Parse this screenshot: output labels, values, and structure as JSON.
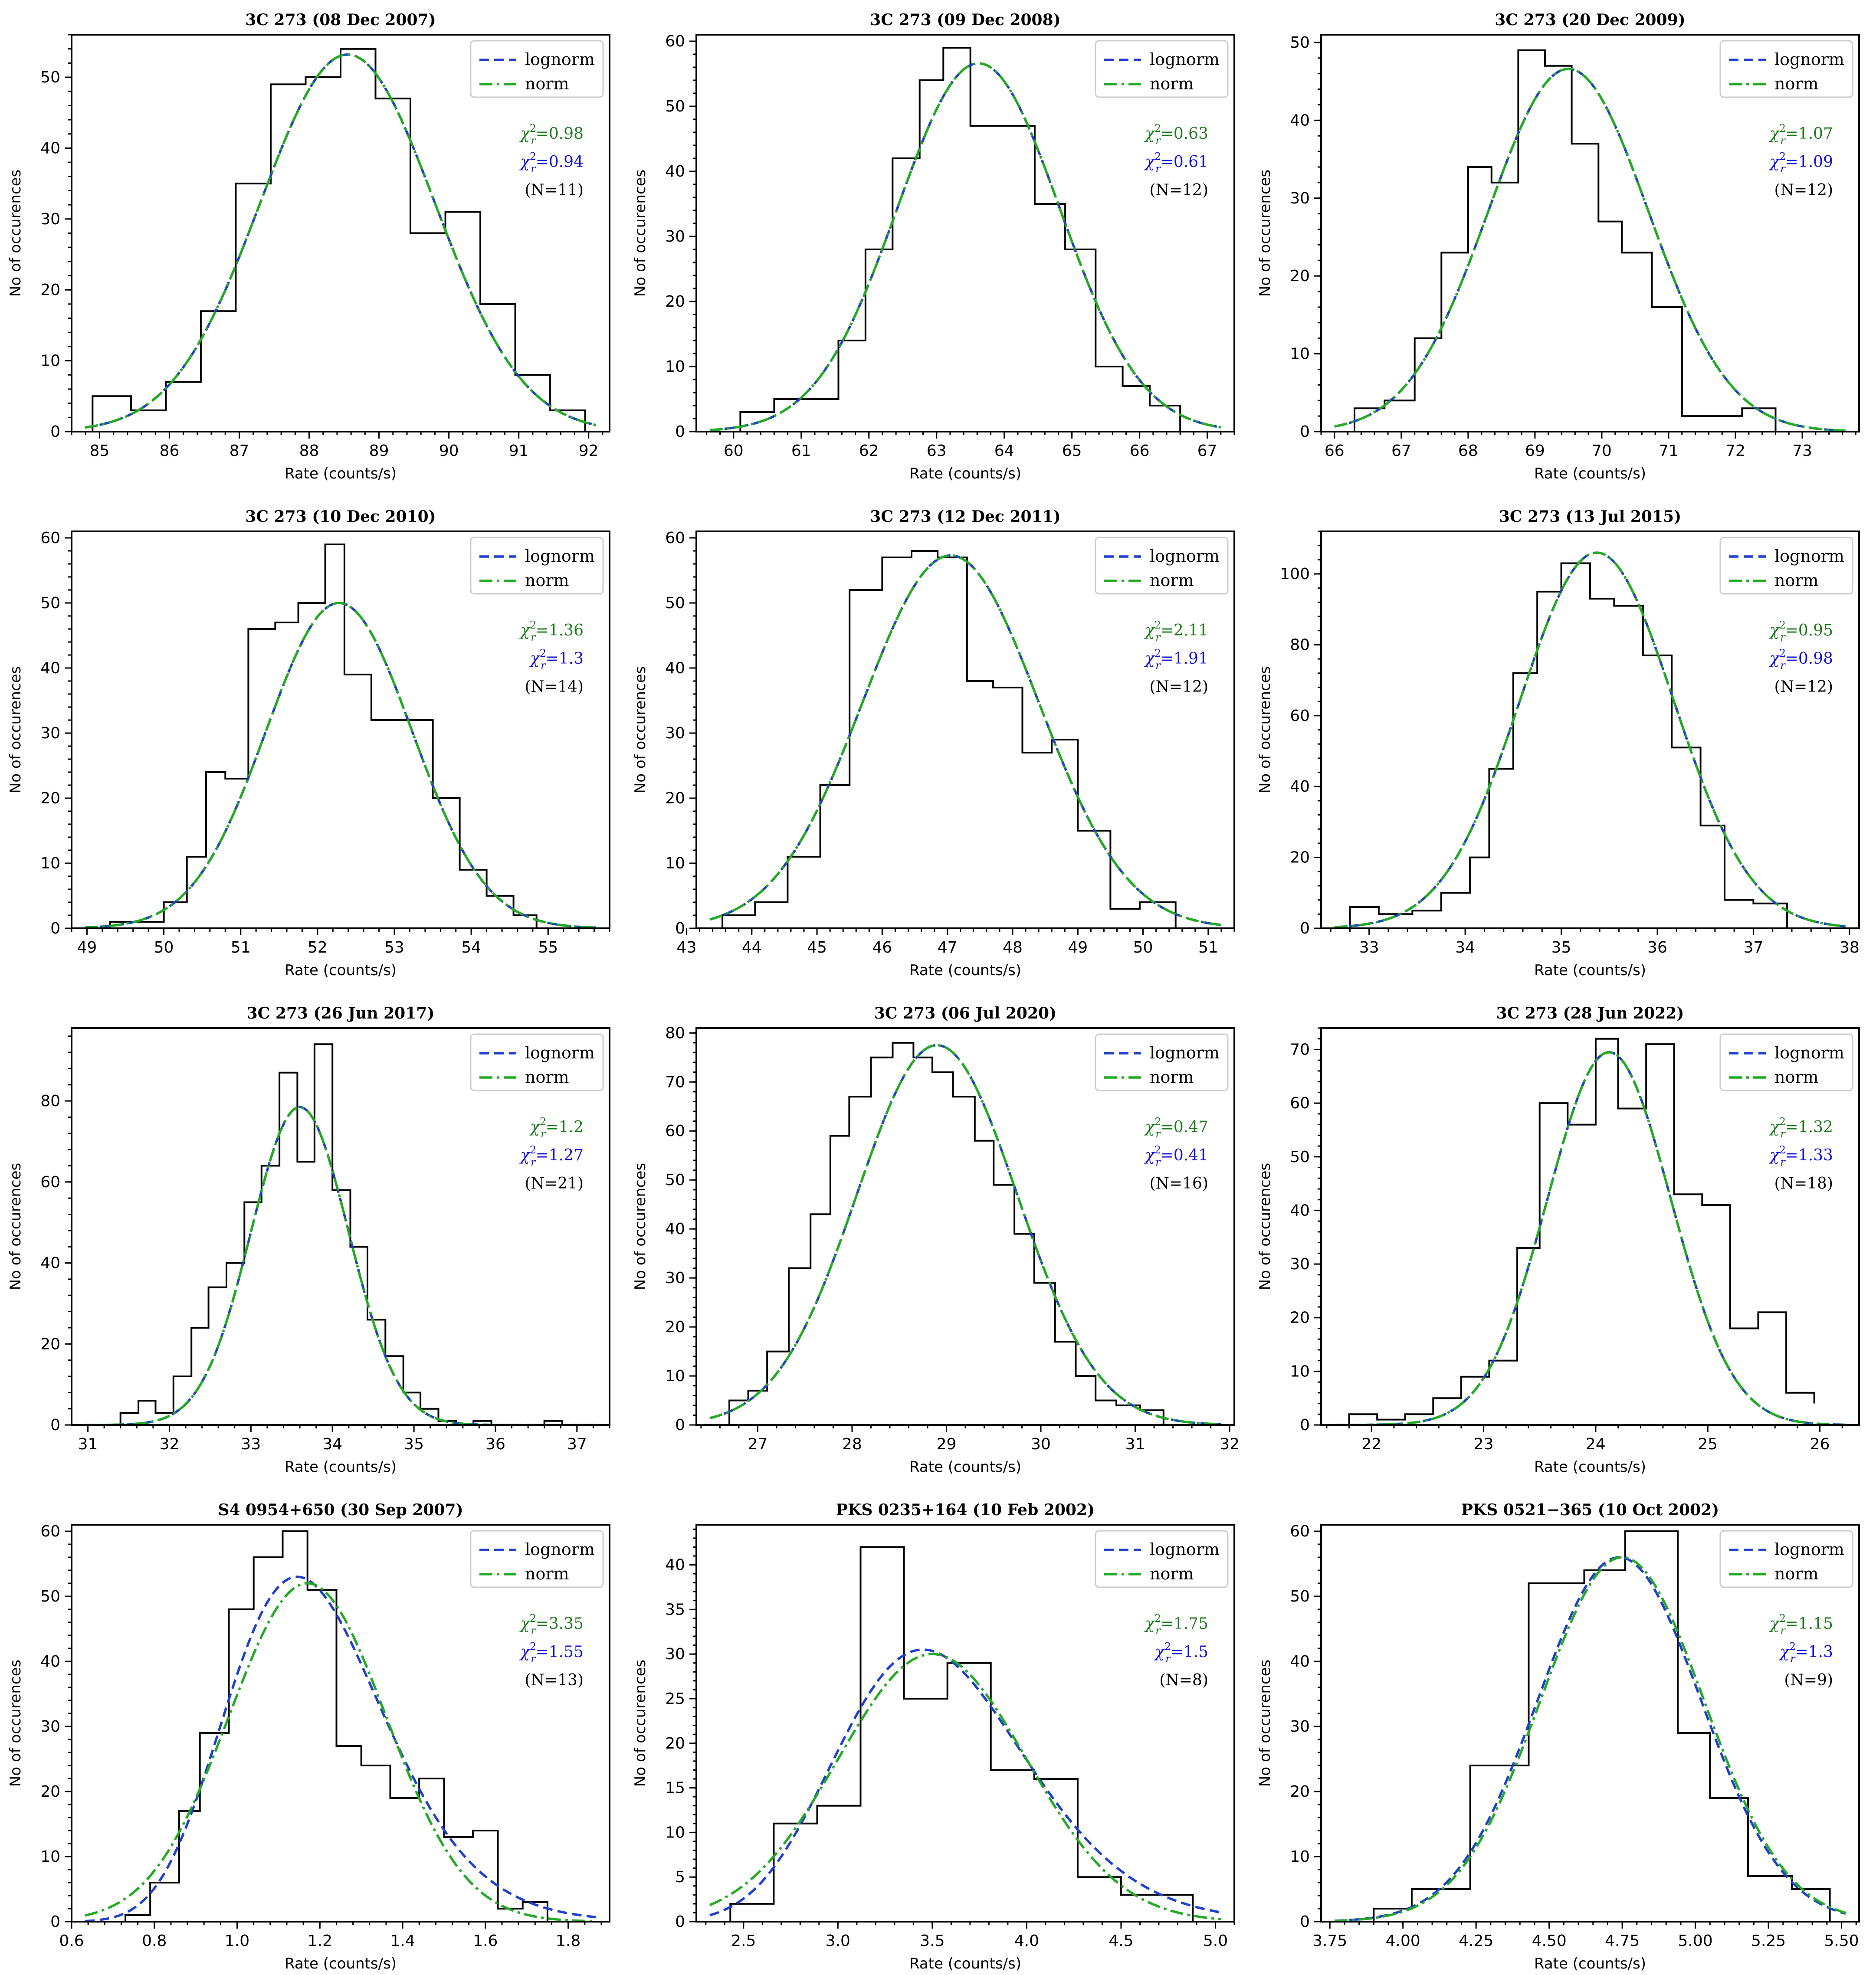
{
  "figure": {
    "ylabel": "No of occurences",
    "xlabel": "Rate (counts/s)",
    "legend": {
      "lognorm": "lognorm",
      "norm": "norm"
    },
    "colors": {
      "lognorm": "#1f3fcf",
      "norm": "#22aa22",
      "hist": "#000000",
      "chi_norm": "#1a7a1a",
      "chi_lognorm": "#1010dd"
    }
  },
  "chart_data": [
    {
      "type": "bar",
      "title": "3C 273 (08 Dec 2007)",
      "xlabel": "Rate (counts/s)",
      "ylabel": "No of occurences",
      "xlim": [
        84.6,
        92.3
      ],
      "ylim": [
        0,
        56
      ],
      "xticks": [
        85,
        86,
        87,
        88,
        89,
        90,
        91,
        92
      ],
      "yticks": [
        0,
        10,
        20,
        30,
        40,
        50
      ],
      "bin_edges": [
        84.9,
        85.45,
        85.95,
        86.45,
        86.95,
        87.45,
        87.95,
        88.45,
        88.95,
        89.45,
        89.95,
        90.45,
        90.95,
        91.45,
        91.95
      ],
      "counts": [
        5,
        3,
        7,
        17,
        35,
        49,
        50,
        54,
        47,
        28,
        31,
        18,
        8,
        3
      ],
      "lognorm": {
        "peak": 53.2,
        "mean": 88.55,
        "sigma": 1.25
      },
      "norm": {
        "peak": 53.2,
        "mean": 88.55,
        "sigma": 1.25
      },
      "chi2_norm": "0.98",
      "chi2_lognorm": "0.94",
      "N": "(N=11)"
    },
    {
      "type": "bar",
      "title": "3C 273 (09 Dec 2008)",
      "xlabel": "Rate (counts/s)",
      "ylabel": "No of occurences",
      "xlim": [
        59.45,
        67.4
      ],
      "ylim": [
        0,
        61
      ],
      "xticks": [
        60,
        61,
        62,
        63,
        64,
        65,
        66,
        67
      ],
      "yticks": [
        0,
        10,
        20,
        30,
        40,
        50,
        60
      ],
      "bin_edges": [
        60.1,
        60.6,
        61.1,
        61.55,
        61.95,
        62.35,
        62.75,
        63.1,
        63.5,
        63.95,
        64.45,
        64.9,
        65.35,
        65.75,
        66.15,
        66.6
      ],
      "counts": [
        3,
        5,
        5,
        14,
        28,
        42,
        54,
        59,
        47,
        47,
        35,
        28,
        10,
        7,
        4
      ],
      "lognorm": {
        "peak": 56.6,
        "mean": 63.62,
        "sigma": 1.2
      },
      "norm": {
        "peak": 56.6,
        "mean": 63.62,
        "sigma": 1.2
      },
      "chi2_norm": "0.63",
      "chi2_lognorm": "0.61",
      "N": "(N=12)"
    },
    {
      "type": "bar",
      "title": "3C 273 (20 Dec 2009)",
      "xlabel": "Rate (counts/s)",
      "ylabel": "No of occurences",
      "xlim": [
        65.8,
        73.85
      ],
      "ylim": [
        0,
        51
      ],
      "xticks": [
        66,
        67,
        68,
        69,
        70,
        71,
        72,
        73
      ],
      "yticks": [
        0,
        10,
        20,
        30,
        40,
        50
      ],
      "bin_edges": [
        66.3,
        66.75,
        67.2,
        67.6,
        68.0,
        68.35,
        68.75,
        69.15,
        69.55,
        69.95,
        70.3,
        70.75,
        71.2,
        71.65,
        72.1,
        72.6,
        73.1
      ],
      "counts": [
        3,
        4,
        12,
        23,
        34,
        32,
        49,
        47,
        37,
        27,
        23,
        16,
        2,
        2,
        3,
        0
      ],
      "lognorm": {
        "peak": 46.6,
        "mean": 69.5,
        "sigma": 1.2
      },
      "norm": {
        "peak": 46.6,
        "mean": 69.5,
        "sigma": 1.2
      },
      "chi2_norm": "1.07",
      "chi2_lognorm": "1.09",
      "N": "(N=12)"
    },
    {
      "type": "bar",
      "title": "3C 273 (10 Dec 2010)",
      "xlabel": "Rate (counts/s)",
      "ylabel": "No of occurences",
      "xlim": [
        48.8,
        55.8
      ],
      "ylim": [
        0,
        61
      ],
      "xticks": [
        49,
        50,
        51,
        52,
        53,
        54,
        55
      ],
      "yticks": [
        0,
        10,
        20,
        30,
        40,
        50,
        60
      ],
      "bin_edges": [
        49.3,
        49.65,
        50.0,
        50.3,
        50.55,
        50.8,
        51.1,
        51.45,
        51.75,
        52.1,
        52.35,
        52.7,
        53.05,
        53.5,
        53.85,
        54.2,
        54.55,
        54.85,
        55.15
      ],
      "counts": [
        1,
        1,
        4,
        11,
        24,
        23,
        46,
        47,
        50,
        59,
        39,
        32,
        32,
        20,
        9,
        5,
        2,
        0
      ],
      "lognorm": {
        "peak": 50.0,
        "mean": 52.28,
        "sigma": 0.95
      },
      "norm": {
        "peak": 50.0,
        "mean": 52.28,
        "sigma": 0.95
      },
      "chi2_norm": "1.36",
      "chi2_lognorm": "1.3",
      "N": "(N=14)"
    },
    {
      "type": "bar",
      "title": "3C 273 (12 Dec 2011)",
      "xlabel": "Rate (counts/s)",
      "ylabel": "No of occurences",
      "xlim": [
        43.15,
        51.4
      ],
      "ylim": [
        0,
        61
      ],
      "xticks": [
        43,
        44,
        45,
        46,
        47,
        48,
        49,
        50,
        51
      ],
      "yticks": [
        0,
        10,
        20,
        30,
        40,
        50,
        60
      ],
      "bin_edges": [
        43.55,
        44.05,
        44.55,
        45.05,
        45.5,
        46.0,
        46.45,
        46.85,
        47.3,
        47.7,
        48.15,
        48.6,
        49.0,
        49.5,
        49.95,
        50.5
      ],
      "counts": [
        2,
        4,
        11,
        22,
        52,
        57,
        58,
        57,
        38,
        37,
        27,
        29,
        15,
        3,
        4
      ],
      "lognorm": {
        "peak": 57.3,
        "mean": 47.05,
        "sigma": 1.35
      },
      "norm": {
        "peak": 57.3,
        "mean": 47.05,
        "sigma": 1.35
      },
      "chi2_norm": "2.11",
      "chi2_lognorm": "1.91",
      "N": "(N=12)"
    },
    {
      "type": "bar",
      "title": "3C 273 (13 Jul 2015)",
      "xlabel": "Rate (counts/s)",
      "ylabel": "No of occurences",
      "xlim": [
        32.5,
        38.1
      ],
      "ylim": [
        0,
        112
      ],
      "xticks": [
        33,
        34,
        35,
        36,
        37,
        38
      ],
      "yticks": [
        0,
        20,
        40,
        60,
        80,
        100
      ],
      "bin_edges": [
        32.8,
        33.1,
        33.45,
        33.75,
        34.05,
        34.25,
        34.5,
        34.75,
        35.0,
        35.3,
        35.55,
        35.85,
        36.15,
        36.45,
        36.7,
        37.0,
        37.35
      ],
      "counts": [
        6,
        4,
        5,
        10,
        20,
        45,
        72,
        95,
        103,
        93,
        91,
        77,
        51,
        29,
        8,
        7
      ],
      "lognorm": {
        "peak": 106,
        "mean": 35.37,
        "sigma": 0.8
      },
      "norm": {
        "peak": 106,
        "mean": 35.37,
        "sigma": 0.8
      },
      "chi2_norm": "0.95",
      "chi2_lognorm": "0.98",
      "N": "(N=12)"
    },
    {
      "type": "bar",
      "title": "3C 273 (26 Jun 2017)",
      "xlabel": "Rate (counts/s)",
      "ylabel": "No of occurences",
      "xlim": [
        30.8,
        37.4
      ],
      "ylim": [
        0,
        98
      ],
      "xticks": [
        31,
        32,
        33,
        34,
        35,
        36,
        37
      ],
      "yticks": [
        0,
        20,
        40,
        60,
        80
      ],
      "bin_edges": [
        31.4,
        31.62,
        31.83,
        32.05,
        32.27,
        32.48,
        32.7,
        32.92,
        33.13,
        33.35,
        33.57,
        33.78,
        34.0,
        34.22,
        34.43,
        34.65,
        34.87,
        35.08,
        35.3,
        35.52,
        35.73,
        35.95,
        36.17,
        36.38,
        36.6,
        36.82
      ],
      "counts": [
        3,
        6,
        3,
        12,
        24,
        34,
        40,
        55,
        64,
        87,
        65,
        94,
        58,
        44,
        26,
        17,
        8,
        4,
        1,
        0,
        1,
        0,
        0,
        0,
        1
      ],
      "lognorm": {
        "peak": 78.5,
        "mean": 33.6,
        "sigma": 0.6
      },
      "norm": {
        "peak": 78.5,
        "mean": 33.6,
        "sigma": 0.6
      },
      "chi2_norm": "1.2",
      "chi2_lognorm": "1.27",
      "N": "(N=21)"
    },
    {
      "type": "bar",
      "title": "3C 273 (06 Jul 2020)",
      "xlabel": "Rate (counts/s)",
      "ylabel": "No of occurences",
      "xlim": [
        26.35,
        32.05
      ],
      "ylim": [
        0,
        81
      ],
      "xticks": [
        27,
        28,
        29,
        30,
        31,
        32
      ],
      "yticks": [
        0,
        10,
        20,
        30,
        40,
        50,
        60,
        70,
        80
      ],
      "bin_edges": [
        26.7,
        26.9,
        27.1,
        27.33,
        27.56,
        27.77,
        27.97,
        28.2,
        28.43,
        28.65,
        28.85,
        29.07,
        29.3,
        29.5,
        29.72,
        29.93,
        30.15,
        30.37,
        30.58,
        30.8,
        31.05,
        31.3,
        31.55
      ],
      "counts": [
        5,
        7,
        15,
        32,
        43,
        59,
        67,
        75,
        78,
        75,
        72,
        67,
        58,
        49,
        39,
        29,
        17,
        10,
        5,
        4,
        3,
        0
      ],
      "lognorm": {
        "peak": 77.5,
        "mean": 28.9,
        "sigma": 0.85
      },
      "norm": {
        "peak": 77.5,
        "mean": 28.9,
        "sigma": 0.85
      },
      "chi2_norm": "0.47",
      "chi2_lognorm": "0.41",
      "N": "(N=16)"
    },
    {
      "type": "bar",
      "title": "3C 273 (28 Jun 2022)",
      "xlabel": "Rate (counts/s)",
      "ylabel": "No of occurences",
      "xlim": [
        21.55,
        26.35
      ],
      "ylim": [
        0,
        74
      ],
      "xticks": [
        22,
        23,
        24,
        25,
        26
      ],
      "yticks": [
        0,
        10,
        20,
        30,
        40,
        50,
        60,
        70
      ],
      "bin_edges": [
        21.8,
        22.05,
        22.3,
        22.55,
        22.8,
        23.05,
        23.3,
        23.5,
        23.75,
        24.0,
        24.2,
        24.45,
        24.7,
        24.95,
        25.2,
        25.45,
        25.7,
        25.95
      ],
      "counts": [
        2,
        1,
        2,
        5,
        9,
        12,
        33,
        60,
        56,
        72,
        59,
        71,
        43,
        41,
        18,
        21,
        6,
        4
      ],
      "lognorm": {
        "peak": 69.5,
        "mean": 24.12,
        "sigma": 0.55
      },
      "norm": {
        "peak": 69.5,
        "mean": 24.12,
        "sigma": 0.55
      },
      "chi2_norm": "1.32",
      "chi2_lognorm": "1.33",
      "N": "(N=18)"
    },
    {
      "type": "bar",
      "title": "S4 0954+650 (30 Sep 2007)",
      "xlabel": "Rate (counts/s)",
      "ylabel": "No of occurences",
      "xlim": [
        0.6,
        1.9
      ],
      "ylim": [
        0,
        61
      ],
      "xticks": [
        0.6,
        0.8,
        1.0,
        1.2,
        1.4,
        1.6,
        1.8
      ],
      "xtick_labels": [
        "0.6",
        "0.8",
        "1.0",
        "1.2",
        "1.4",
        "1.6",
        "1.8"
      ],
      "yticks": [
        0,
        10,
        20,
        30,
        40,
        50,
        60
      ],
      "bin_edges": [
        0.73,
        0.79,
        0.86,
        0.91,
        0.98,
        1.04,
        1.11,
        1.17,
        1.24,
        1.3,
        1.37,
        1.44,
        1.5,
        1.57,
        1.63,
        1.69,
        1.75,
        1.81
      ],
      "counts": [
        1,
        6,
        17,
        29,
        48,
        56,
        60,
        51,
        27,
        24,
        19,
        22,
        13,
        14,
        2,
        3,
        0
      ],
      "lognorm": {
        "peak": 53.0,
        "mean": 1.145,
        "sigma": 0.19,
        "skew": true
      },
      "norm": {
        "peak": 52.0,
        "mean": 1.17,
        "sigma": 0.19
      },
      "chi2_norm": "3.35",
      "chi2_lognorm": "1.55",
      "N": "(N=13)"
    },
    {
      "type": "bar",
      "title": "PKS 0235+164 (10 Feb 2002)",
      "xlabel": "Rate (counts/s)",
      "ylabel": "No of occurences",
      "xlim": [
        2.25,
        5.1
      ],
      "ylim": [
        0,
        44.5
      ],
      "xticks": [
        2.5,
        3.0,
        3.5,
        4.0,
        4.5,
        5.0
      ],
      "xtick_labels": [
        "2.5",
        "3.0",
        "3.5",
        "4.0",
        "4.5",
        "5.0"
      ],
      "yticks": [
        0,
        5,
        10,
        15,
        20,
        25,
        30,
        35,
        40
      ],
      "bin_edges": [
        2.43,
        2.66,
        2.89,
        3.12,
        3.35,
        3.58,
        3.81,
        4.04,
        4.27,
        4.5,
        4.88
      ],
      "counts": [
        2,
        11,
        13,
        42,
        25,
        29,
        17,
        16,
        5,
        3
      ],
      "lognorm": {
        "peak": 30.5,
        "mean": 3.45,
        "sigma": 0.5,
        "skew": true
      },
      "norm": {
        "peak": 30.0,
        "mean": 3.5,
        "sigma": 0.5
      },
      "chi2_norm": "1.75",
      "chi2_lognorm": "1.5",
      "N": "(N=8)"
    },
    {
      "type": "bar",
      "title": "PKS 0521−365 (10 Oct 2002)",
      "xlabel": "Rate (counts/s)",
      "ylabel": "No of occurences",
      "xlim": [
        3.72,
        5.56
      ],
      "ylim": [
        0,
        61
      ],
      "xticks": [
        3.75,
        4.0,
        4.25,
        4.5,
        4.75,
        5.0,
        5.25,
        5.5
      ],
      "xtick_labels": [
        "3.75",
        "4.00",
        "4.25",
        "4.50",
        "4.75",
        "5.00",
        "5.25",
        "5.50"
      ],
      "yticks": [
        0,
        10,
        20,
        30,
        40,
        50,
        60
      ],
      "bin_edges": [
        3.9,
        4.03,
        4.23,
        4.43,
        4.62,
        4.76,
        4.94,
        5.05,
        5.18,
        5.33,
        5.46
      ],
      "counts": [
        2,
        5,
        24,
        52,
        54,
        60,
        29,
        19,
        7,
        5
      ],
      "lognorm": {
        "peak": 56.0,
        "mean": 4.74,
        "sigma": 0.28
      },
      "norm": {
        "peak": 56.0,
        "mean": 4.75,
        "sigma": 0.28
      },
      "chi2_norm": "1.15",
      "chi2_lognorm": "1.3",
      "N": "(N=9)"
    }
  ]
}
